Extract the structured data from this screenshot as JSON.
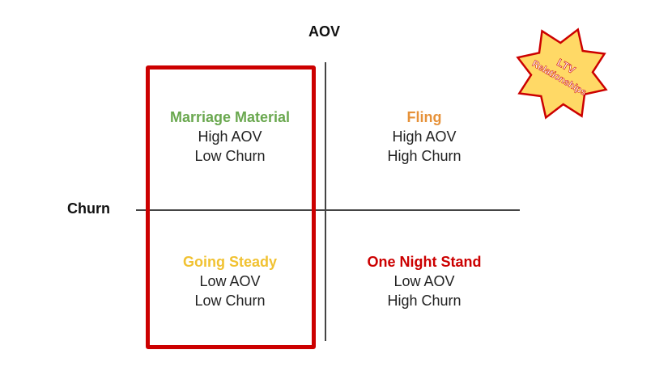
{
  "axes": {
    "vertical_label": "AOV",
    "horizontal_label": "Churn"
  },
  "quadrants": [
    {
      "name": "Marriage Material",
      "lines": [
        "High AOV",
        "Low Churn"
      ],
      "color": "#6aa84f"
    },
    {
      "name": "Fling",
      "lines": [
        "High AOV",
        "High Churn"
      ],
      "color": "#e69138"
    },
    {
      "name": "Going Steady",
      "lines": [
        "Low AOV",
        "Low Churn"
      ],
      "color": "#f1c232"
    },
    {
      "name": "One Night Stand",
      "lines": [
        "Low AOV",
        "High Churn"
      ],
      "color": "#cc0000"
    }
  ],
  "highlight_color": "#cc0000",
  "badge": {
    "line1": "LTV",
    "line2": "Relationships",
    "fill": "#ffd966",
    "stroke": "#cc0000"
  }
}
